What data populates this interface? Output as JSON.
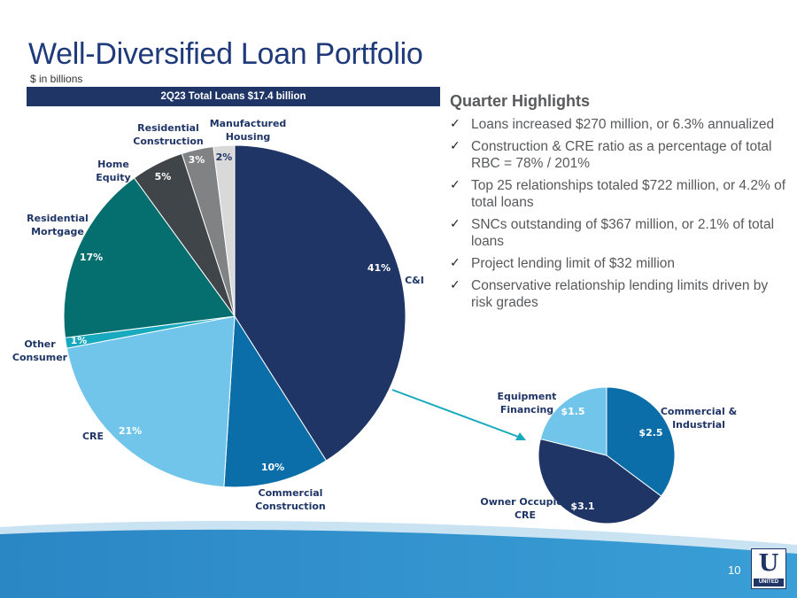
{
  "header": {
    "title": "Well-Diversified Loan Portfolio",
    "subtitle": "$ in billions",
    "banner": "2Q23 Total Loans $17.4 billion"
  },
  "highlights": {
    "heading": "Quarter Highlights",
    "items": [
      "Loans increased $270 million, or 6.3% annualized",
      "Construction & CRE ratio as a percentage of total RBC = 78% / 201%",
      "Top 25 relationships totaled $722 million, or 4.2% of total loans",
      "SNCs outstanding of $367 million, or 2.1% of total loans",
      "Project lending limit of $32 million",
      "Conservative relationship lending limits driven by risk grades"
    ]
  },
  "chart_data": [
    {
      "type": "pie",
      "title": "2Q23 Total Loans $17.4 billion",
      "slices": [
        {
          "label": "C&I",
          "value": 41,
          "value_label": "41%",
          "color": "#1f3566"
        },
        {
          "label": "Commercial Construction",
          "value": 10,
          "value_label": "10%",
          "color": "#0b6ea8"
        },
        {
          "label": "CRE",
          "value": 21,
          "value_label": "21%",
          "color": "#71c5ea"
        },
        {
          "label": "Other Consumer",
          "value": 1,
          "value_label": "1%",
          "color": "#17a9bd"
        },
        {
          "label": "Residential Mortgage",
          "value": 17,
          "value_label": "17%",
          "color": "#056f70"
        },
        {
          "label": "Home Equity",
          "value": 5,
          "value_label": "5%",
          "color": "#404549"
        },
        {
          "label": "Residential Construction",
          "value": 3,
          "value_label": "3%",
          "color": "#808284"
        },
        {
          "label": "Manufactured Housing",
          "value": 2,
          "value_label": "2%",
          "color": "#d9d9d9"
        }
      ]
    },
    {
      "type": "pie",
      "title": "",
      "unit": "$ in billions",
      "slices": [
        {
          "label": "Commercial & Industrial",
          "value": 2.5,
          "value_label": "$2.5",
          "color": "#0b6ea8"
        },
        {
          "label": "Owner Occupied CRE",
          "value": 3.1,
          "value_label": "$3.1",
          "color": "#1f3566"
        },
        {
          "label": "Equipment Financing",
          "value": 1.5,
          "value_label": "$1.5",
          "color": "#71c5ea"
        }
      ]
    }
  ],
  "footer": {
    "page_number": "10",
    "logo_letter": "U",
    "logo_text": "UNITED"
  }
}
